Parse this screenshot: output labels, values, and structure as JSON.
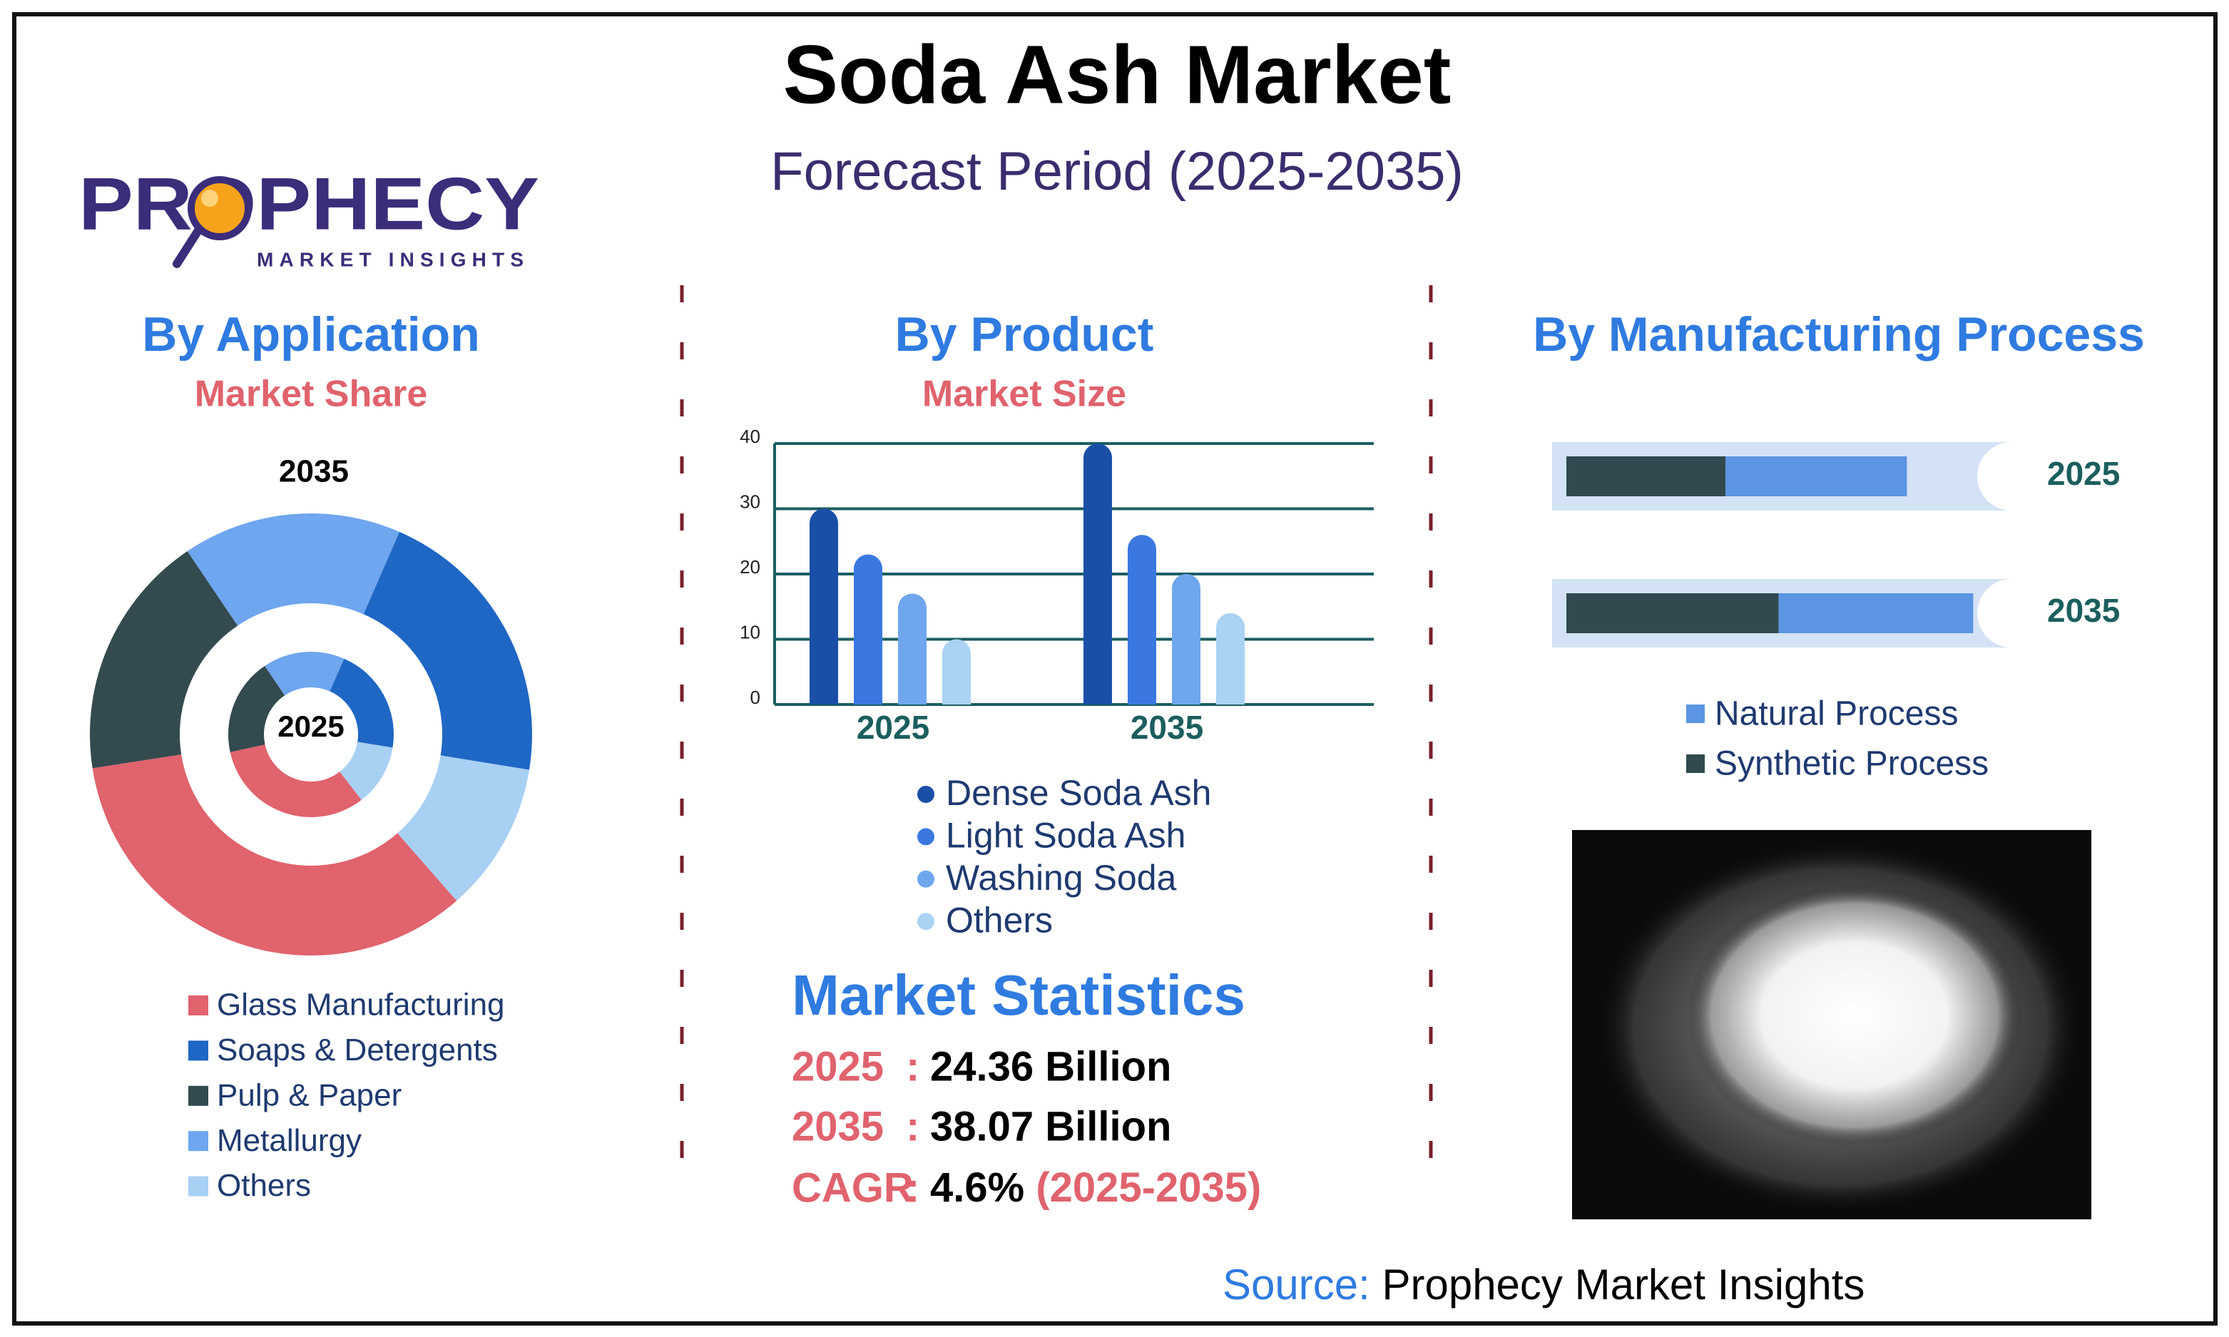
{
  "title": "Soda Ash Market",
  "subtitle": "Forecast Period (2025-2035)",
  "logo": {
    "name": "PROPHECY",
    "tagline": "MARKET INSIGHTS"
  },
  "chart_data": [
    {
      "type": "donut",
      "title": "By Application",
      "subtitle": "Market Share",
      "categories": [
        "Glass Manufacturing",
        "Soaps & Detergents",
        "Pulp & Paper",
        "Metallurgy",
        "Others"
      ],
      "colors": [
        "#e0636d",
        "#1f67c4",
        "#334a4f",
        "#6ea6ef",
        "#a8d0f3"
      ],
      "series": [
        {
          "name": "2035",
          "values": [
            34,
            21,
            18,
            16,
            11
          ]
        },
        {
          "name": "2025",
          "values": [
            32,
            21,
            19,
            16,
            12
          ]
        }
      ]
    },
    {
      "type": "bar",
      "title": "By Product",
      "subtitle": "Market Size",
      "categories": [
        "2025",
        "2035"
      ],
      "series": [
        {
          "name": "Dense Soda Ash",
          "color": "#1a4fa8",
          "values": [
            30,
            40
          ]
        },
        {
          "name": "Light Soda Ash",
          "color": "#3a78e0",
          "values": [
            23,
            26
          ]
        },
        {
          "name": "Washing Soda",
          "color": "#6fa6ee",
          "values": [
            17,
            20
          ]
        },
        {
          "name": "Others",
          "color": "#a9d2f3",
          "values": [
            10,
            14
          ]
        }
      ],
      "ylim": [
        0,
        40
      ],
      "yticks": [
        0,
        10,
        20,
        30,
        40
      ],
      "grid": true
    },
    {
      "type": "bar",
      "orientation": "horizontal",
      "stacked": true,
      "title": "By Manufacturing Process",
      "categories": [
        "2025",
        "2035"
      ],
      "series": [
        {
          "name": "Natural Process",
          "color": "#5b95e3",
          "values": [
            41,
            44
          ]
        },
        {
          "name": "Synthetic Process",
          "color": "#304a4f",
          "values": [
            36,
            48
          ]
        }
      ]
    }
  ],
  "market_statistics": {
    "title": "Market Statistics",
    "separator": ":",
    "rows": [
      {
        "label": "2025",
        "value": "24.36 Billion"
      },
      {
        "label": "2035",
        "value": "38.07 Billion"
      },
      {
        "label": "CAGR",
        "value": "4.6%",
        "period": "(2025-2035)"
      }
    ]
  },
  "source": {
    "label": "Source:",
    "text": "Prophecy Market Insights"
  }
}
